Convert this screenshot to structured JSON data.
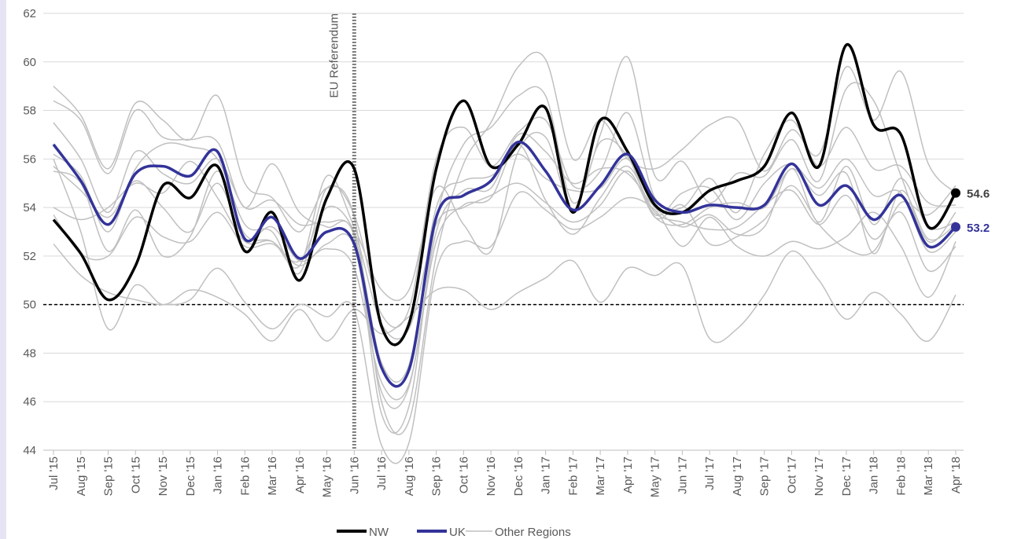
{
  "chart_data": {
    "type": "line",
    "categories": [
      "Jul '15",
      "Aug '15",
      "Sep '15",
      "Oct '15",
      "Nov '15",
      "Dec '15",
      "Jan '16",
      "Feb '16",
      "Mar '16",
      "Apr '16",
      "May '16",
      "Jun '16",
      "Jul '16",
      "Aug '16",
      "Sep '16",
      "Oct '16",
      "Nov '16",
      "Dec '16",
      "Jan '17",
      "Feb '17",
      "Mar '17",
      "Apr '17",
      "May '17",
      "Jun '17",
      "Jul '17",
      "Aug '17",
      "Sep '17",
      "Oct '17",
      "Nov '17",
      "Dec '17",
      "Jan '18",
      "Feb '18",
      "Mar '18",
      "Apr '18"
    ],
    "ylim": [
      44,
      62
    ],
    "yticks": [
      44,
      46,
      48,
      50,
      52,
      54,
      56,
      58,
      60,
      62
    ],
    "grid": true,
    "reference_line": 50,
    "annotations": [
      {
        "text": "EU Referendum",
        "at": "Jun '16"
      }
    ],
    "series": [
      {
        "name": "NW",
        "color": "#000000",
        "values": [
          53.5,
          52.1,
          50.2,
          51.6,
          54.9,
          54.4,
          55.7,
          52.2,
          53.8,
          51.0,
          54.4,
          55.6,
          49.1,
          49.2,
          55.6,
          58.4,
          55.7,
          56.6,
          58.1,
          53.8,
          57.6,
          56.3,
          54.1,
          53.8,
          54.7,
          55.1,
          55.7,
          57.9,
          55.7,
          60.7,
          57.4,
          57.0,
          53.2,
          54.6
        ]
      },
      {
        "name": "UK",
        "color": "#33339a",
        "values": [
          56.6,
          55.1,
          53.3,
          55.4,
          55.7,
          55.3,
          56.3,
          52.7,
          53.6,
          51.9,
          53.0,
          52.5,
          47.4,
          47.3,
          53.6,
          54.5,
          55.1,
          56.7,
          55.5,
          53.9,
          54.9,
          56.2,
          54.3,
          53.8,
          54.1,
          54.0,
          54.1,
          55.8,
          54.1,
          54.9,
          53.5,
          54.5,
          52.4,
          53.2
        ]
      }
    ],
    "other_regions": {
      "name": "Other Regions",
      "color": "#c0c0c0",
      "series": [
        [
          59.0,
          57.8,
          55.6,
          58.3,
          57.6,
          56.8,
          58.6,
          55.0,
          54.4,
          53.0,
          54.8,
          53.6,
          46.0,
          45.2,
          52.0,
          55.8,
          57.5,
          59.8,
          60.1,
          56.0,
          57.6,
          56.0,
          55.6,
          56.4,
          57.4,
          57.6,
          55.5,
          57.2,
          56.2,
          59.8,
          57.6,
          59.6,
          55.8,
          54.6
        ],
        [
          58.4,
          57.6,
          55.4,
          58.0,
          56.9,
          56.8,
          56.7,
          54.0,
          55.8,
          53.8,
          53.2,
          52.8,
          45.5,
          45.8,
          53.5,
          56.6,
          57.3,
          58.6,
          58.6,
          54.2,
          57.0,
          60.2,
          55.3,
          55.9,
          54.2,
          55.4,
          55.3,
          56.8,
          55.1,
          58.9,
          58.4,
          55.3,
          52.6,
          53.8
        ],
        [
          56.0,
          53.0,
          49.0,
          50.8,
          50.0,
          50.6,
          50.3,
          49.6,
          48.5,
          49.8,
          48.5,
          49.8,
          48.8,
          49.5,
          50.6,
          50.6,
          49.8,
          50.5,
          51.1,
          51.8,
          50.1,
          51.5,
          51.2,
          51.6,
          48.6,
          49.0,
          50.4,
          52.2,
          51.0,
          49.4,
          50.5,
          49.6,
          48.5,
          50.4
        ],
        [
          52.5,
          51.2,
          50.5,
          50.2,
          50.0,
          50.2,
          51.5,
          50.1,
          49.0,
          50.0,
          49.5,
          49.8,
          44.2,
          44.3,
          51.4,
          52.6,
          52.4,
          54.6,
          53.9,
          53.1,
          53.6,
          54.4,
          53.9,
          52.4,
          53.6,
          52.4,
          52.0,
          52.6,
          52.3,
          52.8,
          53.8,
          52.4,
          50.3,
          52.6
        ],
        [
          55.5,
          55.0,
          52.2,
          53.9,
          52.0,
          52.8,
          55.5,
          52.9,
          52.6,
          51.6,
          52.5,
          52.4,
          46.4,
          46.6,
          53.0,
          54.7,
          54.8,
          57.0,
          56.3,
          55.0,
          55.6,
          55.4,
          54.0,
          53.2,
          53.7,
          52.9,
          53.2,
          55.6,
          53.4,
          55.7,
          53.3,
          55.2,
          53.2,
          53.4
        ],
        [
          57.5,
          56.0,
          53.8,
          56.3,
          55.4,
          55.0,
          56.0,
          54.0,
          54.3,
          53.3,
          53.4,
          52.9,
          47.6,
          47.5,
          54.0,
          55.1,
          55.3,
          56.2,
          55.2,
          54.7,
          54.8,
          56.0,
          53.7,
          54.6,
          54.8,
          53.5,
          55.0,
          55.8,
          54.8,
          56.0,
          54.5,
          54.6,
          52.2,
          53.0
        ],
        [
          56.2,
          55.3,
          53.0,
          55.6,
          56.6,
          56.5,
          56.0,
          53.3,
          53.0,
          51.3,
          54.8,
          53.7,
          49.6,
          49.8,
          56.0,
          57.3,
          55.7,
          57.1,
          57.6,
          54.9,
          55.5,
          57.9,
          54.4,
          54.0,
          55.2,
          53.8,
          56.2,
          57.6,
          55.7,
          57.3,
          55.6,
          55.7,
          54.2,
          54.1
        ],
        [
          54.0,
          53.5,
          54.0,
          55.0,
          54.6,
          55.9,
          54.4,
          52.6,
          52.6,
          51.6,
          55.3,
          53.2,
          50.6,
          50.6,
          54.8,
          53.3,
          52.2,
          56.3,
          56.9,
          53.9,
          56.7,
          56.1,
          53.6,
          54.1,
          52.5,
          52.8,
          53.5,
          54.9,
          53.3,
          52.3,
          52.2,
          54.2,
          53.7,
          54.9
        ],
        [
          55.7,
          54.7,
          53.6,
          55.1,
          54.0,
          53.0,
          55.0,
          52.7,
          53.2,
          51.8,
          52.3,
          51.5,
          46.8,
          46.7,
          52.6,
          54.1,
          54.4,
          56.6,
          54.3,
          52.9,
          54.4,
          55.7,
          53.8,
          53.4,
          53.1,
          53.2,
          54.1,
          54.7,
          53.3,
          54.5,
          52.7,
          53.8,
          51.4,
          52.4
        ],
        [
          53.7,
          52.1,
          52.0,
          53.6,
          52.8,
          52.6,
          53.8,
          52.4,
          52.5,
          51.8,
          54.0,
          53.0,
          49.2,
          49.0,
          53.3,
          54.0,
          54.5,
          55.0,
          54.2,
          53.4,
          54.1,
          55.5,
          53.6,
          53.3,
          54.0,
          54.2,
          54.0,
          55.6,
          54.5,
          55.4,
          52.1,
          54.7,
          52.7,
          53.3
        ]
      ]
    }
  }
}
